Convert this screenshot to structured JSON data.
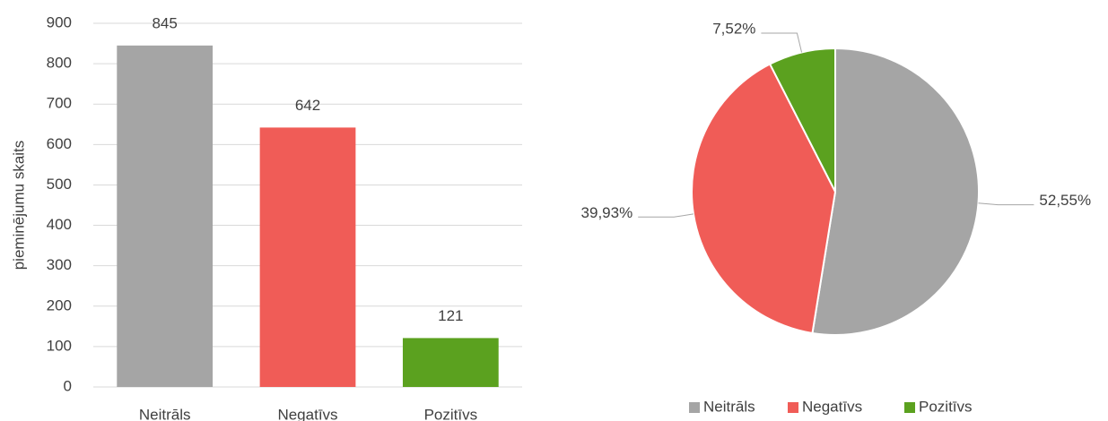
{
  "chart_data": [
    {
      "type": "bar",
      "y_label": "pieminējumu skaits",
      "categories": [
        "Neitrāls",
        "Negatīvs",
        "Pozitīvs"
      ],
      "values": [
        845,
        642,
        121
      ],
      "colors": [
        "#a5a5a5",
        "#f05c57",
        "#5ba11f"
      ],
      "ylim": [
        0,
        900
      ],
      "yticks": [
        0,
        100,
        200,
        300,
        400,
        500,
        600,
        700,
        800,
        900
      ],
      "grid": true
    },
    {
      "type": "pie",
      "categories": [
        "Neitrāls",
        "Negatīvs",
        "Pozitīvs"
      ],
      "values": [
        52.55,
        39.93,
        7.52
      ],
      "value_labels": [
        "52,55%",
        "39,93%",
        "7,52%"
      ],
      "colors": [
        "#a5a5a5",
        "#f05c57",
        "#5ba11f"
      ],
      "legend": "bottom"
    }
  ]
}
